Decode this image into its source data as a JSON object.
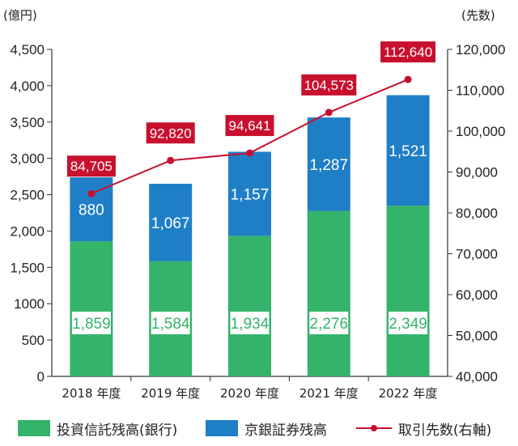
{
  "chart_data": {
    "type": "bar",
    "stacked": true,
    "categories": [
      "2018 年度",
      "2019 年度",
      "2020 年度",
      "2021 年度",
      "2022 年度"
    ],
    "left_axis": {
      "unit": "(億円)",
      "ylim": [
        0,
        4500
      ],
      "ticks": [
        "0",
        "500",
        "1000",
        "1,500",
        "2,000",
        "2,500",
        "3,000",
        "3,500",
        "4,000",
        "4,500"
      ]
    },
    "right_axis": {
      "unit": "(先数)",
      "ylim": [
        40000,
        120000
      ],
      "ticks": [
        "40,000",
        "50,000",
        "60,000",
        "70,000",
        "80,000",
        "90,000",
        "100,000",
        "110,000",
        "120,000"
      ]
    },
    "series": [
      {
        "name": "投資信託残高(銀行)",
        "type": "bar",
        "axis": "left",
        "color": "#34b36b",
        "values": [
          1859,
          1584,
          1934,
          2276,
          2349
        ],
        "labels": [
          "1,859",
          "1,584",
          "1,934",
          "2,276",
          "2,349"
        ]
      },
      {
        "name": "京銀証券残高",
        "type": "bar",
        "axis": "left",
        "color": "#1f7fc6",
        "values": [
          880,
          1067,
          1157,
          1287,
          1521
        ],
        "labels": [
          "880",
          "1,067",
          "1,157",
          "1,287",
          "1,521"
        ]
      },
      {
        "name": "取引先数(右軸)",
        "type": "line",
        "axis": "right",
        "color": "#c8102e",
        "values": [
          84705,
          92820,
          94641,
          104573,
          112640
        ],
        "labels": [
          "84,705",
          "92,820",
          "94,641",
          "104,573",
          "112,640"
        ]
      }
    ],
    "grid": false,
    "legend_position": "bottom"
  }
}
